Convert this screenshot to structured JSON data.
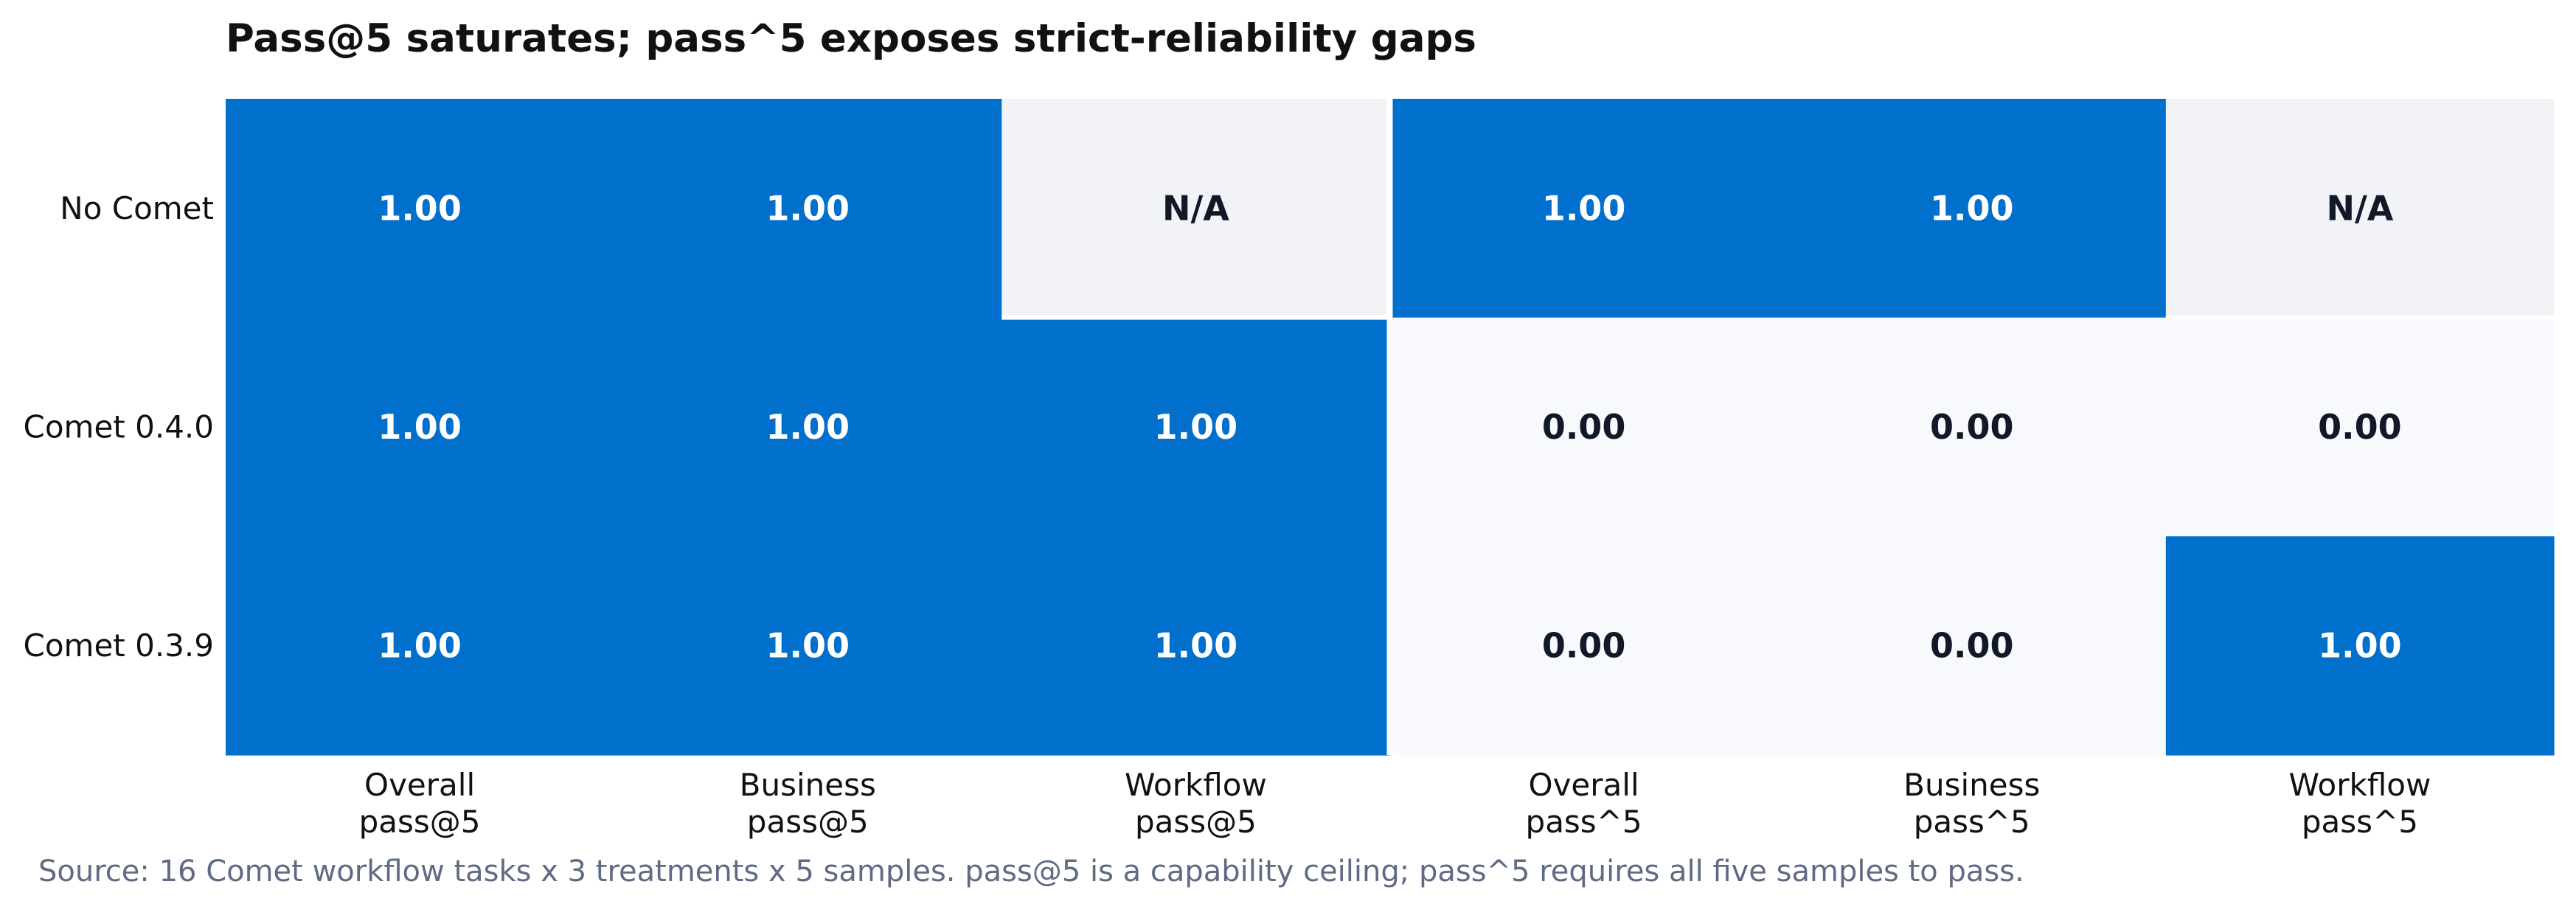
{
  "chart_data": {
    "type": "heatmap",
    "title": "Pass@5 saturates; pass^5 exposes strict-reliability gaps",
    "rows": [
      "No Comet",
      "Comet 0.4.0",
      "Comet 0.3.9"
    ],
    "columns": [
      [
        "Overall",
        "pass@5"
      ],
      [
        "Business",
        "pass@5"
      ],
      [
        "Workflow",
        "pass@5"
      ],
      [
        "Overall",
        "pass^5"
      ],
      [
        "Business",
        "pass^5"
      ],
      [
        "Workflow",
        "pass^5"
      ]
    ],
    "values": [
      [
        1.0,
        1.0,
        null,
        1.0,
        1.0,
        null
      ],
      [
        1.0,
        1.0,
        1.0,
        0.0,
        0.0,
        0.0
      ],
      [
        1.0,
        1.0,
        1.0,
        0.0,
        0.0,
        1.0
      ]
    ],
    "na_label": "N/A",
    "value_format": "2 decimals",
    "colors": {
      "high": "#0070cc",
      "low": "#f7f9fd",
      "na": "#f2f3f7",
      "text_on_high": "#ffffff",
      "text_on_low": "#111827"
    },
    "source_note": "Source: 16 Comet workflow tasks x 3 treatments x 5 samples. pass@5 is a capability ceiling; pass^5 requires all five samples to pass."
  }
}
